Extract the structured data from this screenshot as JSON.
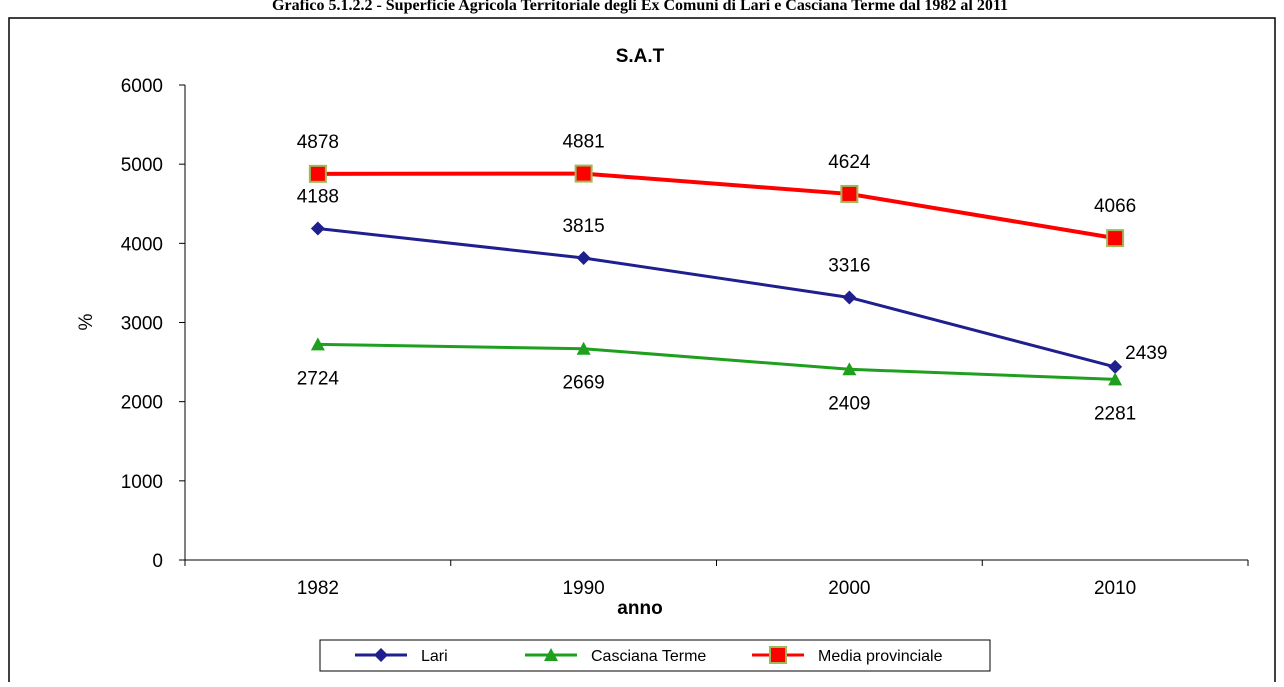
{
  "caption": "Grafico 5.1.2.2 - Superficie Agricola Territoriale degli Ex Comuni di Lari e Casciana Terme dal 1982 al 2011",
  "chart_data": {
    "type": "line",
    "title": "S.A.T",
    "x_label": "anno",
    "y_label": "%",
    "categories": [
      "1982",
      "1990",
      "2000",
      "2010"
    ],
    "series": [
      {
        "name": "Lari",
        "color": "#1f1f8f",
        "values": [
          4188,
          3815,
          3316,
          2439
        ]
      },
      {
        "name": "Casciana Terme",
        "color": "#1ea01e",
        "values": [
          2724,
          2669,
          2409,
          2281
        ]
      },
      {
        "name": "Media provinciale",
        "color": "#ff0000",
        "values": [
          4878,
          4881,
          4624,
          4066
        ]
      }
    ],
    "ylim": [
      0,
      6000
    ],
    "yticks": [
      0,
      1000,
      2000,
      3000,
      4000,
      5000,
      6000
    ],
    "grid": false
  }
}
